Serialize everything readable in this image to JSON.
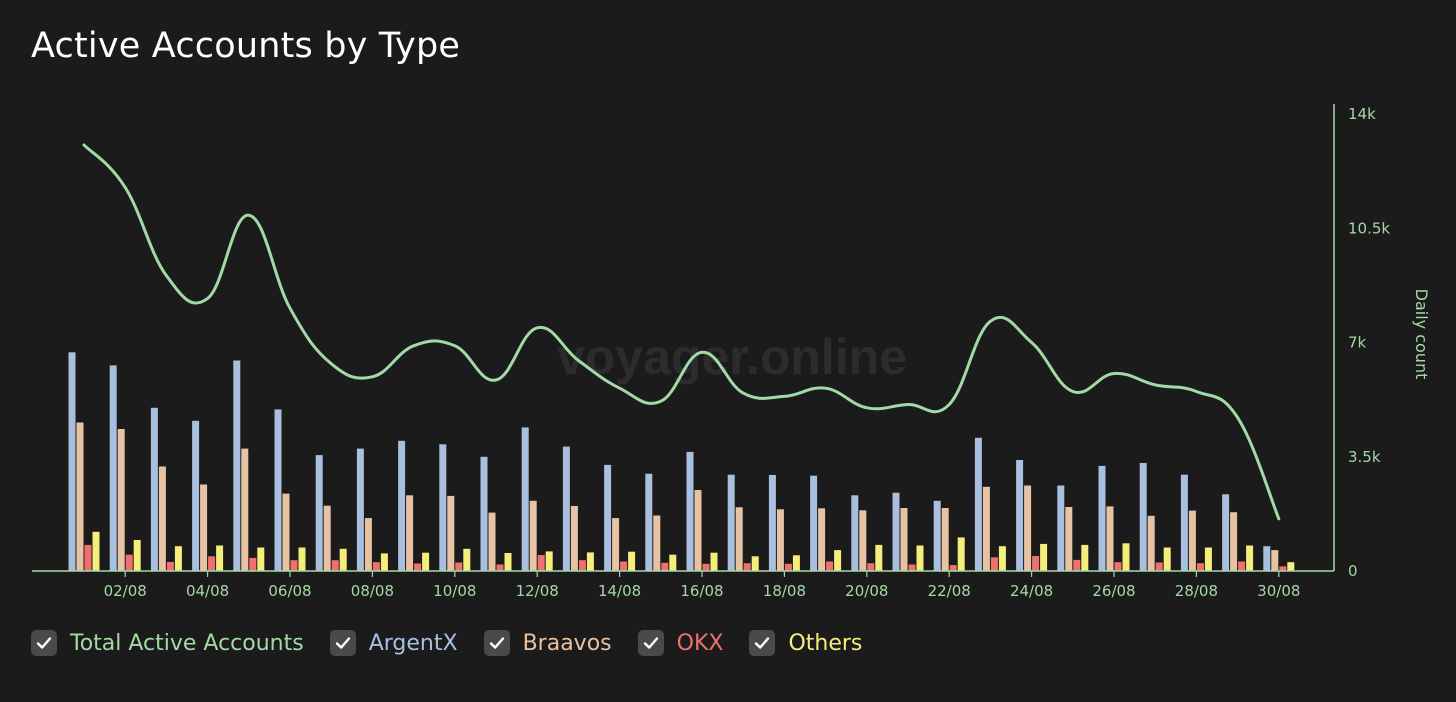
{
  "title": "Active Accounts by Type",
  "watermark": "voyager.online",
  "legend": [
    {
      "label": "Total Active Accounts",
      "color": "#a3d9a5",
      "checked": true
    },
    {
      "label": "ArgentX",
      "color": "#a9bfe0",
      "checked": true
    },
    {
      "label": "Braavos",
      "color": "#e8c3a3",
      "checked": true
    },
    {
      "label": "OKX",
      "color": "#f07070",
      "checked": true
    },
    {
      "label": "Others",
      "color": "#f6ee7a",
      "checked": true
    }
  ],
  "chart_data": {
    "type": "bar",
    "categories": [
      "01/08",
      "02/08",
      "03/08",
      "04/08",
      "05/08",
      "06/08",
      "07/08",
      "08/08",
      "09/08",
      "10/08",
      "11/08",
      "12/08",
      "13/08",
      "14/08",
      "15/08",
      "16/08",
      "17/08",
      "18/08",
      "19/08",
      "20/08",
      "21/08",
      "22/08",
      "23/08",
      "24/08",
      "25/08",
      "26/08",
      "27/08",
      "28/08",
      "29/08",
      "30/08"
    ],
    "x_tick_labels": [
      "02/08",
      "04/08",
      "06/08",
      "08/08",
      "10/08",
      "12/08",
      "14/08",
      "16/08",
      "18/08",
      "20/08",
      "22/08",
      "24/08",
      "26/08",
      "28/08",
      "30/08"
    ],
    "series": [
      {
        "name": "ArgentX",
        "type": "bar",
        "color": "#a9bfe0",
        "values": [
          6700,
          6300,
          5000,
          4600,
          6450,
          4950,
          3550,
          3750,
          3990,
          3880,
          3500,
          4400,
          3810,
          3250,
          2980,
          3650,
          2950,
          2940,
          2920,
          2320,
          2400,
          2150,
          4080,
          3400,
          2620,
          3220,
          3310,
          2950,
          2350,
          760
        ]
      },
      {
        "name": "Braavos",
        "type": "bar",
        "color": "#e8c3a3",
        "values": [
          4550,
          4350,
          3200,
          2650,
          3750,
          2370,
          2000,
          1620,
          2320,
          2300,
          1790,
          2150,
          1990,
          1620,
          1700,
          2480,
          1950,
          1890,
          1920,
          1860,
          1930,
          1930,
          2580,
          2620,
          1960,
          1980,
          1690,
          1850,
          1800,
          640
        ]
      },
      {
        "name": "OKX",
        "type": "bar",
        "color": "#f07070",
        "values": [
          800,
          500,
          280,
          450,
          400,
          330,
          330,
          270,
          230,
          260,
          200,
          490,
          330,
          290,
          250,
          220,
          240,
          220,
          290,
          240,
          200,
          180,
          420,
          460,
          340,
          270,
          260,
          240,
          290,
          140
        ]
      },
      {
        "name": "Others",
        "type": "bar",
        "color": "#f6ee7a",
        "values": [
          1200,
          950,
          760,
          780,
          720,
          720,
          680,
          540,
          560,
          680,
          550,
          600,
          570,
          590,
          500,
          560,
          450,
          480,
          640,
          800,
          780,
          1030,
          760,
          830,
          800,
          850,
          720,
          720,
          780,
          270
        ]
      },
      {
        "name": "Total Active Accounts",
        "type": "line",
        "color": "#a3d9a5",
        "values": [
          13050,
          11750,
          9050,
          8350,
          10900,
          8050,
          6350,
          5950,
          6900,
          6900,
          5850,
          7450,
          6450,
          5600,
          5200,
          6700,
          5450,
          5350,
          5600,
          5000,
          5100,
          5100,
          7650,
          7000,
          5500,
          6050,
          5700,
          5500,
          4700,
          1600
        ]
      }
    ],
    "xlabel": "",
    "ylabel": "Daily count",
    "ylim": [
      0,
      14000
    ],
    "y_ticks": [
      0,
      3500,
      7000,
      10500,
      14000
    ],
    "y_tick_labels": [
      "0",
      "3.5k",
      "7k",
      "10.5k",
      "14k"
    ],
    "y_axis_position": "right",
    "grid": false,
    "legend_position": "bottom-left"
  }
}
